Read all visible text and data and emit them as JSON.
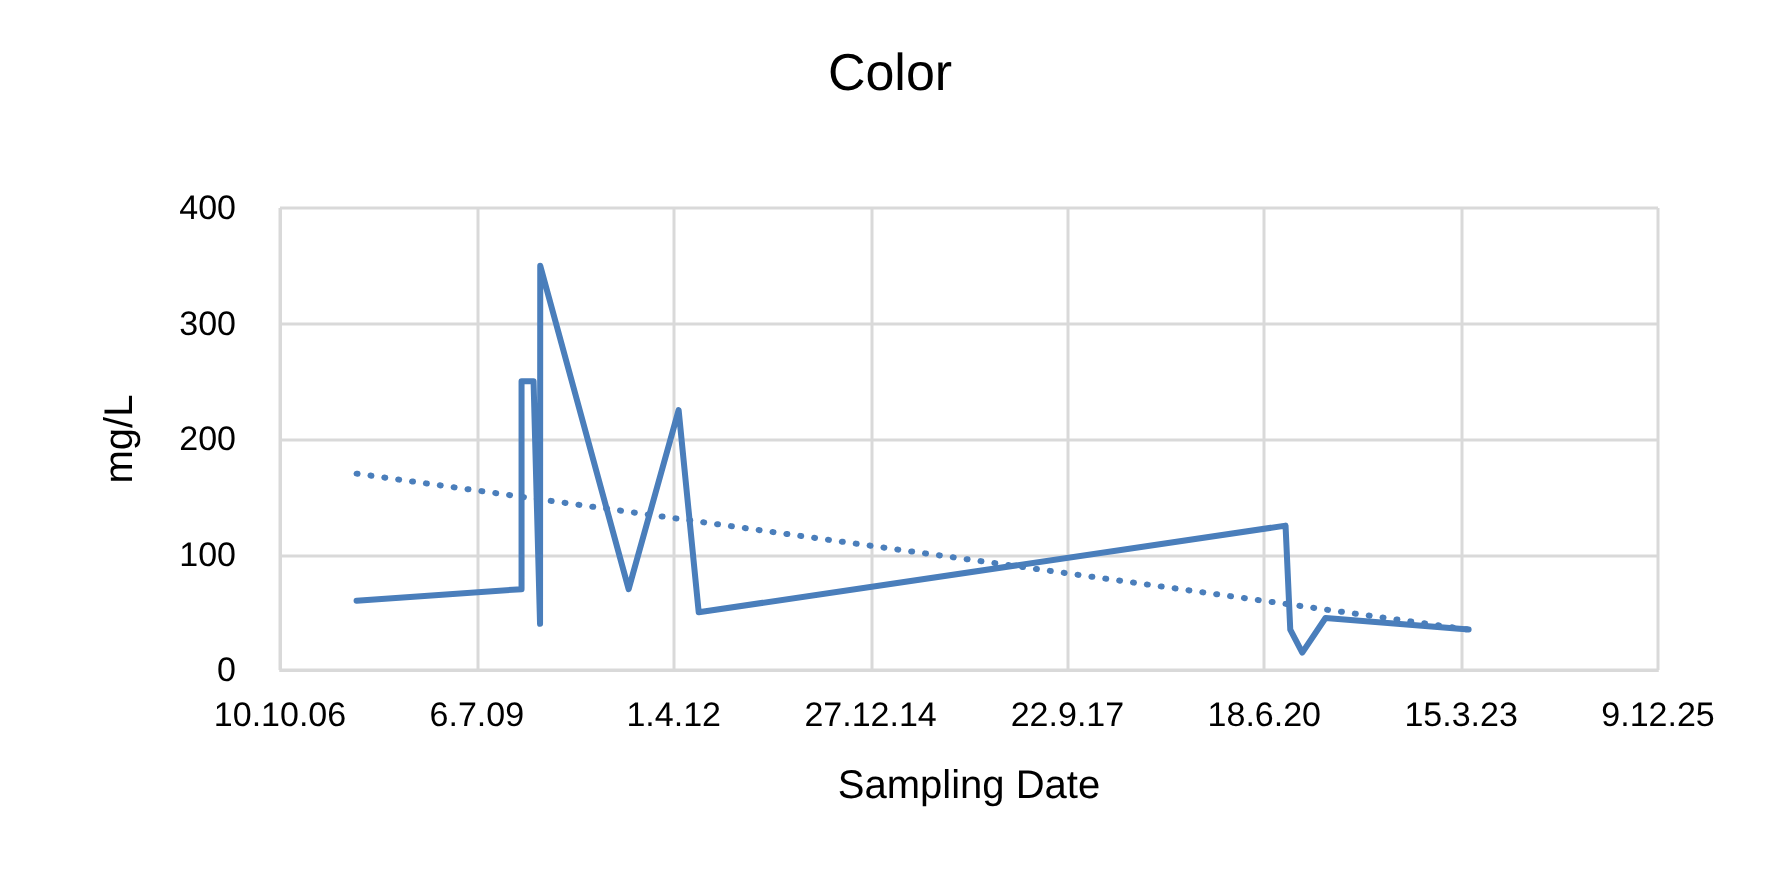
{
  "chart_data": {
    "type": "line",
    "title": "Color",
    "xlabel": "Sampling Date",
    "ylabel": "mg/L",
    "xlim": [
      "2006-10-10",
      "2025-12-09"
    ],
    "xticks": [
      {
        "value": "2006-10-10",
        "label": "10.10.06"
      },
      {
        "value": "2009-07-06",
        "label": "6.7.09"
      },
      {
        "value": "2012-04-01",
        "label": "1.4.12"
      },
      {
        "value": "2014-12-27",
        "label": "27.12.14"
      },
      {
        "value": "2017-09-22",
        "label": "22.9.17"
      },
      {
        "value": "2020-06-18",
        "label": "18.6.20"
      },
      {
        "value": "2023-03-15",
        "label": "15.3.23"
      },
      {
        "value": "2025-12-09",
        "label": "9.12.25"
      }
    ],
    "ylim": [
      0,
      400
    ],
    "yticks": [
      0,
      100,
      200,
      300,
      400
    ],
    "grid": true,
    "marker": "none",
    "series": [
      {
        "color": "#4a7ebb",
        "line_style": "solid",
        "x": [
          "2007-11-03",
          "2010-02-18",
          "2010-02-18",
          "2010-04-20",
          "2010-05-23",
          "2010-05-24",
          "2011-08-16",
          "2012-04-26",
          "2012-08-06",
          "2020-10-04",
          "2020-10-28",
          "2020-12-28",
          "2021-04-25",
          "2023-04-22"
        ],
        "values": [
          60,
          70,
          250,
          250,
          40,
          350,
          70,
          225,
          50,
          125,
          35,
          15,
          45,
          35
        ]
      },
      {
        "color": "#4a7ebb",
        "line_style": "dotted",
        "x": [
          "2007-11-03",
          "2023-04-22"
        ],
        "values": [
          170,
          35
        ]
      }
    ]
  }
}
